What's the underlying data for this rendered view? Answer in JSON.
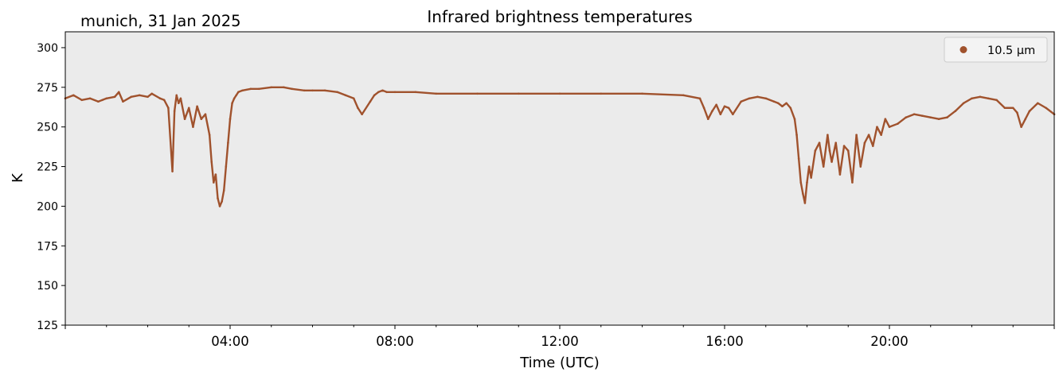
{
  "header": {
    "location_label": "munich, 31 Jan 2025"
  },
  "chart_data": {
    "type": "line",
    "title": "Infrared brightness temperatures",
    "xlabel": "Time (UTC)",
    "ylabel": "K",
    "x_unit": "hours UTC",
    "xlim": [
      0,
      24
    ],
    "ylim": [
      125,
      310
    ],
    "x_ticks": [
      4,
      8,
      12,
      16,
      20
    ],
    "x_tick_labels": [
      "04:00",
      "08:00",
      "12:00",
      "16:00",
      "20:00"
    ],
    "y_ticks": [
      125,
      150,
      175,
      200,
      225,
      250,
      275,
      300
    ],
    "y_tick_labels": [
      "125",
      "150",
      "175",
      "200",
      "225",
      "250",
      "275",
      "300"
    ],
    "background_color": "#ebebeb",
    "grid": false,
    "legend": {
      "position": "top-right"
    },
    "series": [
      {
        "name": "10.5 µm",
        "color": "#a0522d",
        "x": [
          0.0,
          0.2,
          0.4,
          0.6,
          0.8,
          0.9,
          1.0,
          1.2,
          1.3,
          1.4,
          1.6,
          1.8,
          2.0,
          2.1,
          2.3,
          2.4,
          2.5,
          2.6,
          2.65,
          2.7,
          2.75,
          2.8,
          2.9,
          3.0,
          3.1,
          3.2,
          3.3,
          3.4,
          3.5,
          3.55,
          3.6,
          3.65,
          3.7,
          3.75,
          3.8,
          3.85,
          3.9,
          3.95,
          4.0,
          4.05,
          4.1,
          4.15,
          4.2,
          4.3,
          4.5,
          4.7,
          5.0,
          5.3,
          5.5,
          5.8,
          6.0,
          6.3,
          6.6,
          6.8,
          7.0,
          7.1,
          7.2,
          7.4,
          7.5,
          7.6,
          7.7,
          7.8,
          8.0,
          8.5,
          9.0,
          10.0,
          11.0,
          12.0,
          13.0,
          14.0,
          15.0,
          15.4,
          15.5,
          15.6,
          15.7,
          15.8,
          15.9,
          16.0,
          16.1,
          16.2,
          16.4,
          16.6,
          16.8,
          17.0,
          17.2,
          17.3,
          17.4,
          17.5,
          17.6,
          17.7,
          17.75,
          17.8,
          17.85,
          17.9,
          17.95,
          18.0,
          18.05,
          18.1,
          18.2,
          18.3,
          18.4,
          18.5,
          18.55,
          18.6,
          18.7,
          18.8,
          18.9,
          19.0,
          19.1,
          19.2,
          19.3,
          19.4,
          19.5,
          19.6,
          19.7,
          19.8,
          19.9,
          20.0,
          20.2,
          20.4,
          20.6,
          20.8,
          21.0,
          21.2,
          21.4,
          21.6,
          21.8,
          22.0,
          22.2,
          22.4,
          22.6,
          22.8,
          23.0,
          23.1,
          23.2,
          23.3,
          23.4,
          23.6,
          23.8,
          24.0
        ],
        "values": [
          268,
          270,
          267,
          268,
          266,
          267,
          268,
          269,
          272,
          266,
          269,
          270,
          269,
          271,
          268,
          267,
          262,
          222,
          260,
          270,
          265,
          268,
          255,
          262,
          250,
          263,
          255,
          258,
          245,
          228,
          215,
          220,
          205,
          200,
          203,
          210,
          225,
          240,
          255,
          265,
          268,
          270,
          272,
          273,
          274,
          274,
          275,
          275,
          274,
          273,
          273,
          273,
          272,
          270,
          268,
          262,
          258,
          266,
          270,
          272,
          273,
          272,
          272,
          272,
          271,
          271,
          271,
          271,
          271,
          271,
          270,
          268,
          262,
          255,
          260,
          264,
          258,
          263,
          262,
          258,
          266,
          268,
          269,
          268,
          266,
          265,
          263,
          265,
          262,
          255,
          245,
          230,
          215,
          208,
          202,
          215,
          225,
          218,
          235,
          240,
          225,
          245,
          235,
          228,
          240,
          220,
          238,
          235,
          215,
          245,
          225,
          240,
          245,
          238,
          250,
          245,
          255,
          250,
          252,
          256,
          258,
          257,
          256,
          255,
          256,
          260,
          265,
          268,
          269,
          268,
          267,
          262,
          262,
          259,
          250,
          255,
          260,
          265,
          262,
          258
        ]
      }
    ]
  }
}
